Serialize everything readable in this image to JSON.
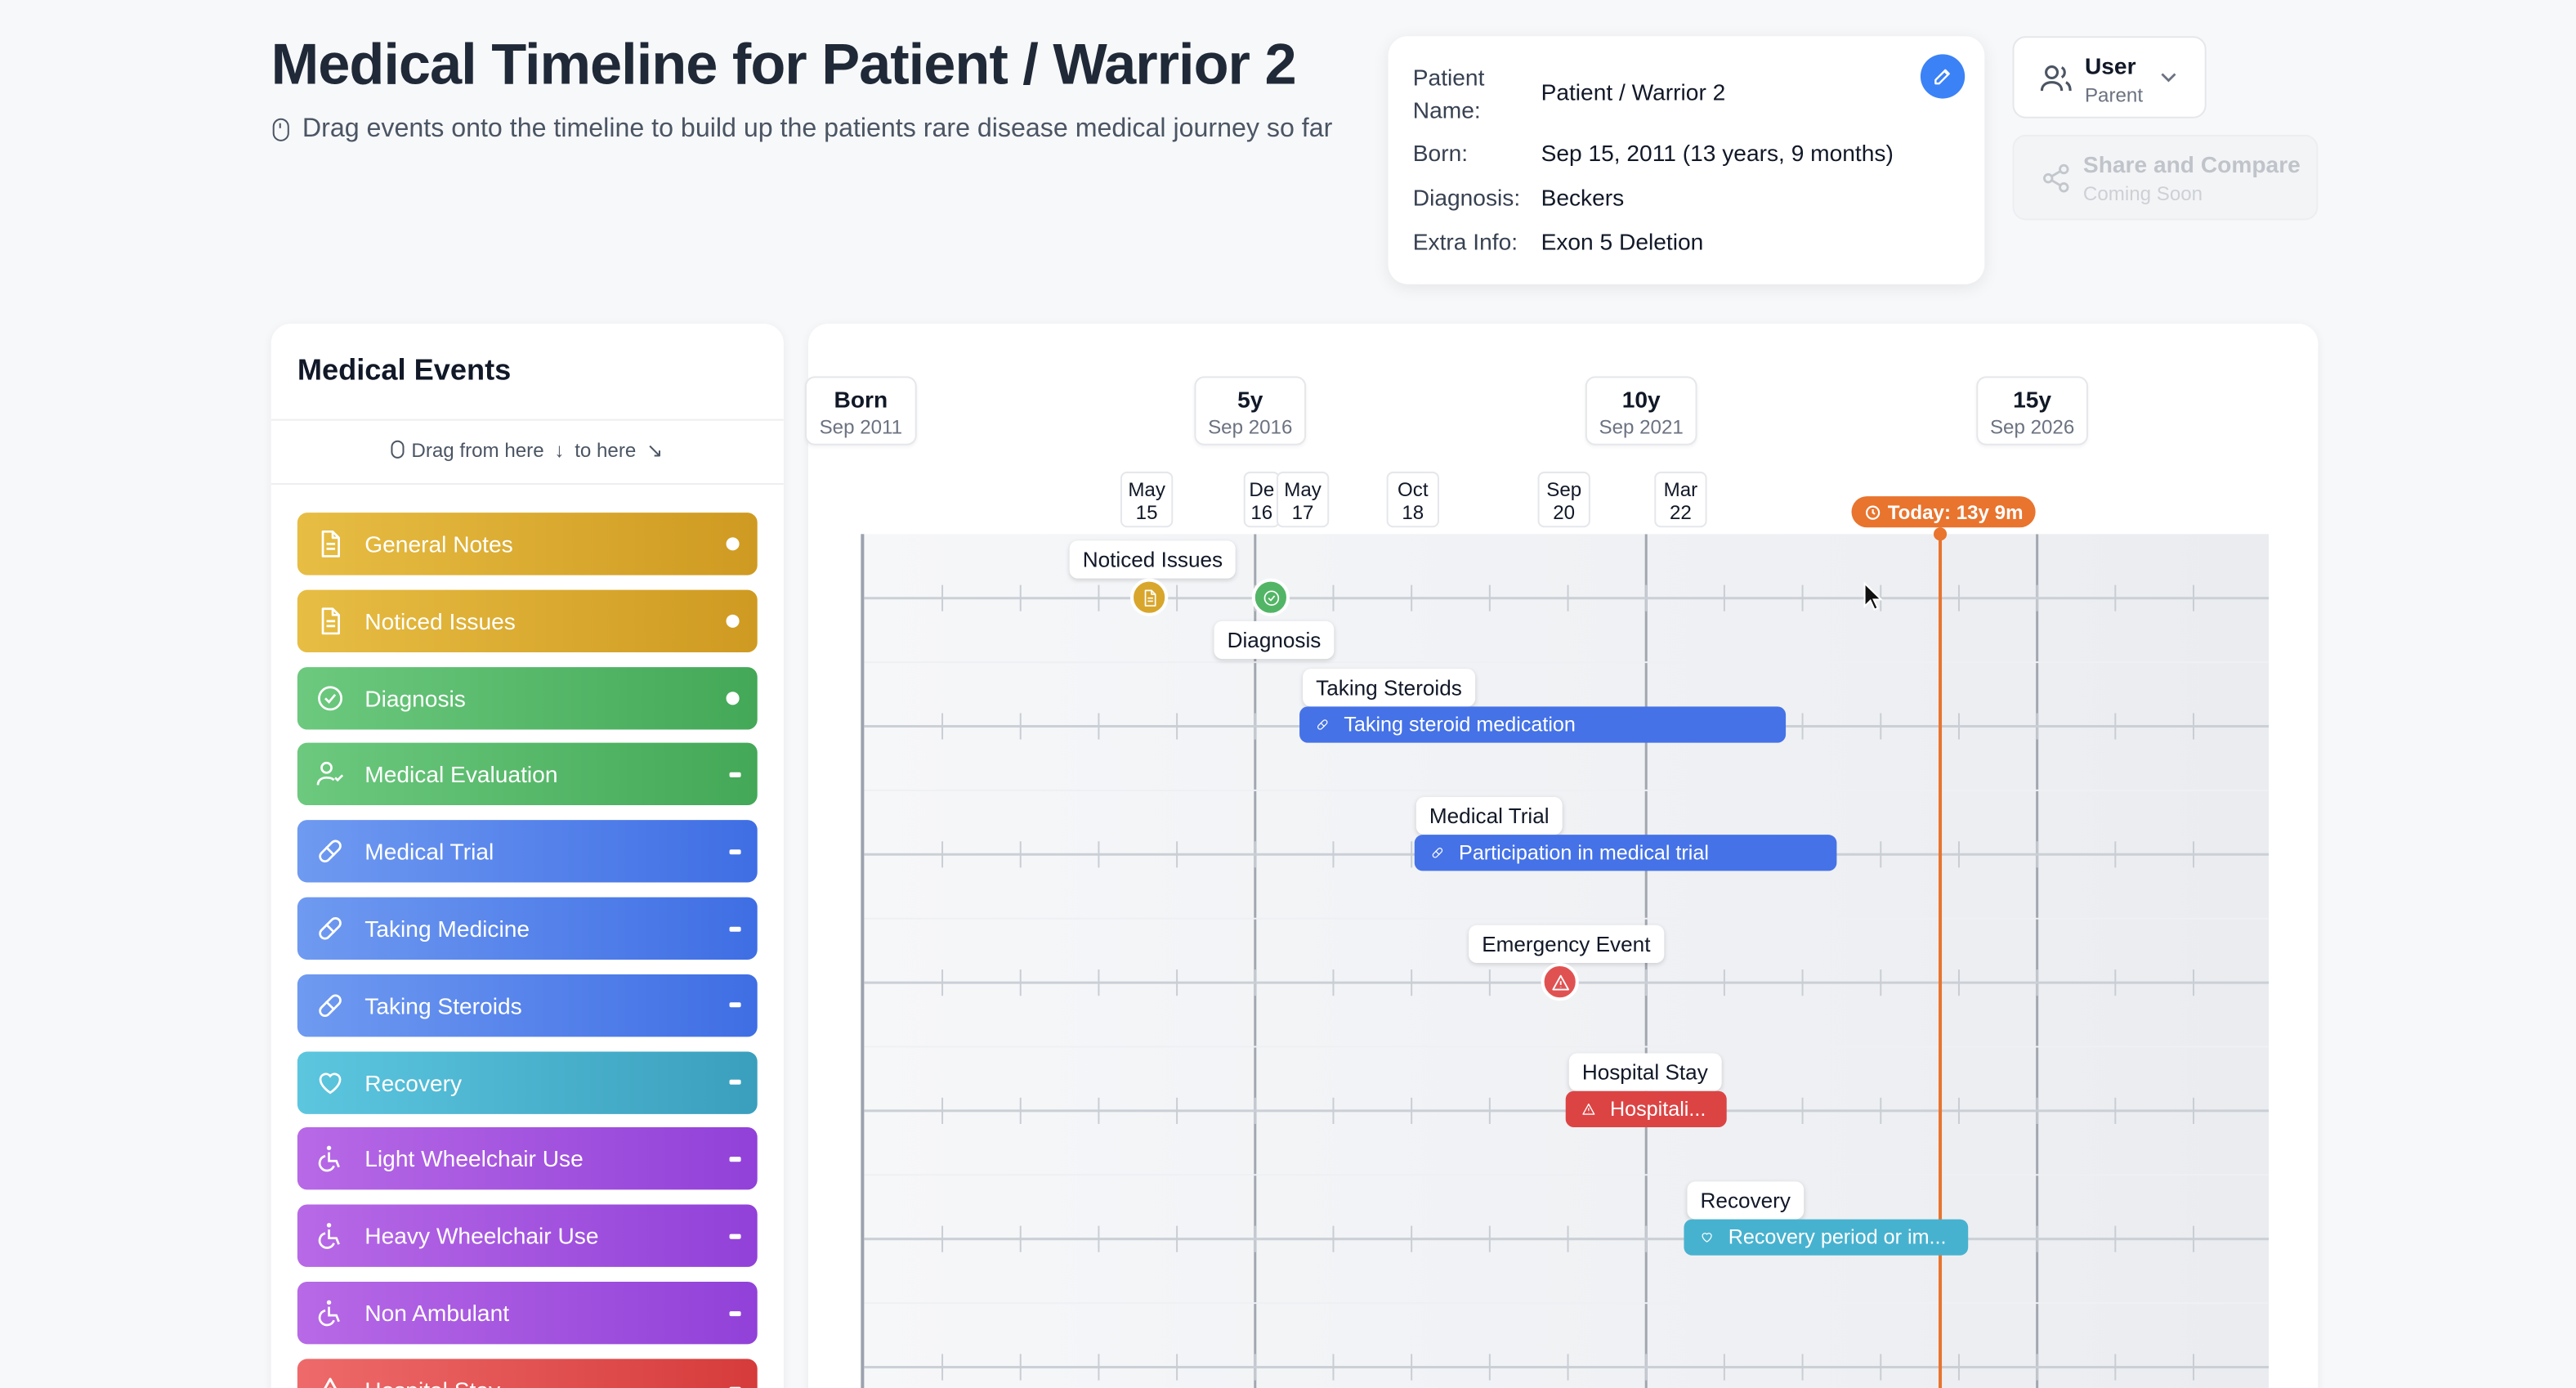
{
  "header": {
    "title": "Medical Timeline for Patient / Warrior 2",
    "subtitle": "Drag events onto the timeline to build up the patients rare disease medical journey so far"
  },
  "patient": {
    "name_label": "Patient Name:",
    "name": "Patient / Warrior 2",
    "born_label": "Born:",
    "born": "Sep 15, 2011 (13 years, 9 months)",
    "diagnosis_label": "Diagnosis:",
    "diagnosis": "Beckers",
    "extra_label": "Extra Info:",
    "extra": "Exon 5 Deletion"
  },
  "user_menu": {
    "name": "User",
    "role": "Parent"
  },
  "share": {
    "label": "Share and Compare",
    "note": "Coming Soon"
  },
  "events_panel": {
    "title": "Medical Events",
    "hint_a": "Drag from here",
    "hint_b": "to here",
    "items": [
      {
        "label": "General Notes",
        "color": "#d9a62c",
        "icon": "document-icon",
        "kind": "point"
      },
      {
        "label": "Noticed Issues",
        "color": "#d9a62c",
        "icon": "document-icon",
        "kind": "point"
      },
      {
        "label": "Diagnosis",
        "color": "#52b566",
        "icon": "check-circle-icon",
        "kind": "point"
      },
      {
        "label": "Medical Evaluation",
        "color": "#52b566",
        "icon": "user-check-icon",
        "kind": "range"
      },
      {
        "label": "Medical Trial",
        "color": "#4f7eea",
        "icon": "pill-icon",
        "kind": "range"
      },
      {
        "label": "Taking Medicine",
        "color": "#4f7eea",
        "icon": "pill-icon",
        "kind": "range"
      },
      {
        "label": "Taking Steroids",
        "color": "#4f7eea",
        "icon": "pill-icon",
        "kind": "range"
      },
      {
        "label": "Recovery",
        "color": "#47b2cf",
        "icon": "heart-icon",
        "kind": "range"
      },
      {
        "label": "Light Wheelchair Use",
        "color": "#a455df",
        "icon": "wheelchair-icon",
        "kind": "range"
      },
      {
        "label": "Heavy Wheelchair Use",
        "color": "#a455df",
        "icon": "wheelchair-icon",
        "kind": "range"
      },
      {
        "label": "Non Ambulant",
        "color": "#a455df",
        "icon": "wheelchair-icon",
        "kind": "range"
      },
      {
        "label": "Hospital Stay",
        "color": "#e05252",
        "icon": "alert-triangle-icon",
        "kind": "range"
      }
    ]
  },
  "timeline": {
    "year_markers": [
      {
        "label": "Born",
        "date": "Sep 2011"
      },
      {
        "label": "5y",
        "date": "Sep 2016"
      },
      {
        "label": "10y",
        "date": "Sep 2021"
      },
      {
        "label": "15y",
        "date": "Sep 2026"
      }
    ],
    "date_markers": [
      {
        "month": "May",
        "day": "15"
      },
      {
        "month": "De",
        "day": "16"
      },
      {
        "month": "May",
        "day": "17"
      },
      {
        "month": "Oct",
        "day": "18"
      },
      {
        "month": "Sep",
        "day": "20"
      },
      {
        "month": "Mar",
        "day": "22"
      }
    ],
    "today_label": "Today: 13y 9m",
    "events": [
      {
        "label": "Noticed Issues",
        "type": "point",
        "color": "#d9a62c",
        "icon": "document-icon"
      },
      {
        "label": "Diagnosis",
        "type": "point",
        "color": "#52b566",
        "icon": "check-circle-icon"
      },
      {
        "label": "Taking Steroids",
        "type": "range",
        "bar_text": "Taking steroid medication",
        "color": "#4572e6",
        "icon": "pill-icon"
      },
      {
        "label": "Medical Trial",
        "type": "range",
        "bar_text": "Participation in medical trial",
        "color": "#4572e6",
        "icon": "pill-icon"
      },
      {
        "label": "Emergency Event",
        "type": "point",
        "color": "#e05252",
        "icon": "alert-triangle-icon"
      },
      {
        "label": "Hospital Stay",
        "type": "range",
        "bar_text": "Hospitali...",
        "color": "#dc4444",
        "icon": "alert-triangle-icon"
      },
      {
        "label": "Recovery",
        "type": "range",
        "bar_text": "Recovery period or im...",
        "color": "#47b2cf",
        "icon": "heart-icon"
      }
    ]
  }
}
